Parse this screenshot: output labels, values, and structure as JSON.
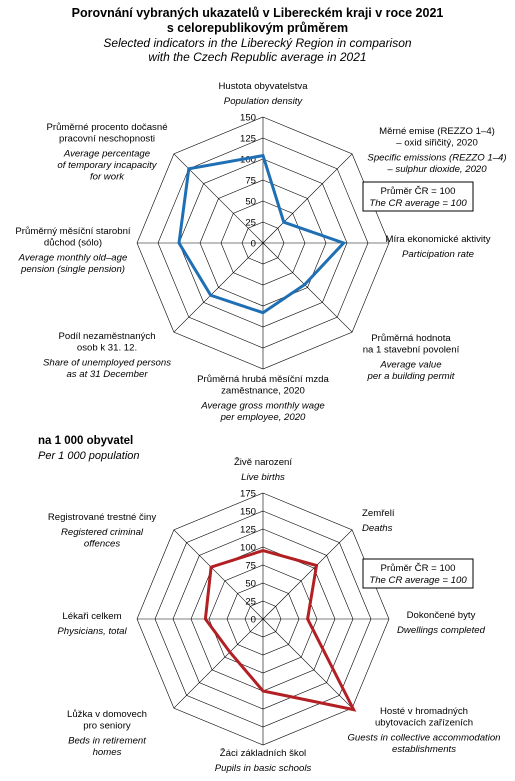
{
  "title": {
    "cz": "Porovnání vybraných ukazatelů v Libereckém kraji v roce 2021\ns celorepublikovým průměrem",
    "en": "Selected indicators in the Liberecký Region in comparison\nwith the Czech Republic average in 2021"
  },
  "colors": {
    "chart1_line": "#1f6fb5",
    "chart2_line": "#b22024",
    "grid": "#000000",
    "box_border": "#000000"
  },
  "chart_data": [
    {
      "type": "radar",
      "rlim": [
        0,
        150
      ],
      "ticks": [
        "0",
        "25",
        "50",
        "75",
        "100",
        "125",
        "150"
      ],
      "grid": true,
      "reference_note": {
        "cz": "Průměr ČR = 100",
        "en": "The CR average = 100"
      },
      "axes": [
        {
          "cz": [
            "Hustota obyvatelstva"
          ],
          "en": [
            "Population density"
          ]
        },
        {
          "cz": [
            "Měrné emise (REZZO 1–4)",
            "– oxid siřičitý, 2020"
          ],
          "en": [
            "Specific emissions (REZZO 1–4)",
            "– sulphur dioxide, 2020"
          ]
        },
        {
          "cz": [
            "Míra ekonomické aktivity"
          ],
          "en": [
            "Participation rate"
          ]
        },
        {
          "cz": [
            "Průměrná hodnota",
            "na 1 stavební povolení"
          ],
          "en": [
            "Average value",
            "per a building permit"
          ]
        },
        {
          "cz": [
            "Průměrná hrubá měsíční mzda",
            "zaměstnance, 2020"
          ],
          "en": [
            "Average gross monthly wage",
            "per employee, 2020"
          ]
        },
        {
          "cz": [
            "Podíl nezaměstnaných",
            "osob k 31. 12."
          ],
          "en": [
            "Share of unemployed persons",
            "as at 31 December"
          ]
        },
        {
          "cz": [
            "Průměrný měsíční starobní",
            "důchod (sólo)"
          ],
          "en": [
            "Average monthly old–age",
            "pension (single pension)"
          ]
        },
        {
          "cz": [
            "Průměrné procento dočasné",
            "pracovní neschopnosti"
          ],
          "en": [
            "Average percentage",
            "of temporary incapacity",
            "for work"
          ]
        }
      ],
      "values": [
        104,
        35,
        96,
        70,
        83,
        88,
        100,
        125
      ]
    },
    {
      "type": "radar",
      "subtitle": {
        "cz": "na 1 000 obyvatel",
        "en": "Per 1 000 population"
      },
      "rlim": [
        0,
        175
      ],
      "ticks": [
        "0",
        "25",
        "50",
        "75",
        "100",
        "125",
        "150",
        "175"
      ],
      "grid": true,
      "reference_note": {
        "cz": "Průměr ČR = 100",
        "en": "The CR average = 100"
      },
      "axes": [
        {
          "cz": [
            "Živě narození"
          ],
          "en": [
            "Live births"
          ]
        },
        {
          "cz": [
            "Zemřelí"
          ],
          "en": [
            "Deaths"
          ]
        },
        {
          "cz": [
            "Dokončené byty"
          ],
          "en": [
            "Dwellings completed"
          ]
        },
        {
          "cz": [
            "Hosté v hromadných",
            "ubytovacích zařízeních"
          ],
          "en": [
            "Guests in collective accommodation",
            "establishments"
          ]
        },
        {
          "cz": [
            "Žáci základních škol"
          ],
          "en": [
            "Pupils in basic schools"
          ]
        },
        {
          "cz": [
            "Lůžka v domovech",
            "pro seniory"
          ],
          "en": [
            "Beds in retirement",
            "homes"
          ]
        },
        {
          "cz": [
            "Lékaři celkem"
          ],
          "en": [
            "Physicians, total"
          ]
        },
        {
          "cz": [
            "Registrované trestné činy"
          ],
          "en": [
            "Registered criminal",
            "offences"
          ]
        }
      ],
      "values": [
        95,
        105,
        62,
        178,
        100,
        65,
        80,
        102
      ]
    }
  ]
}
